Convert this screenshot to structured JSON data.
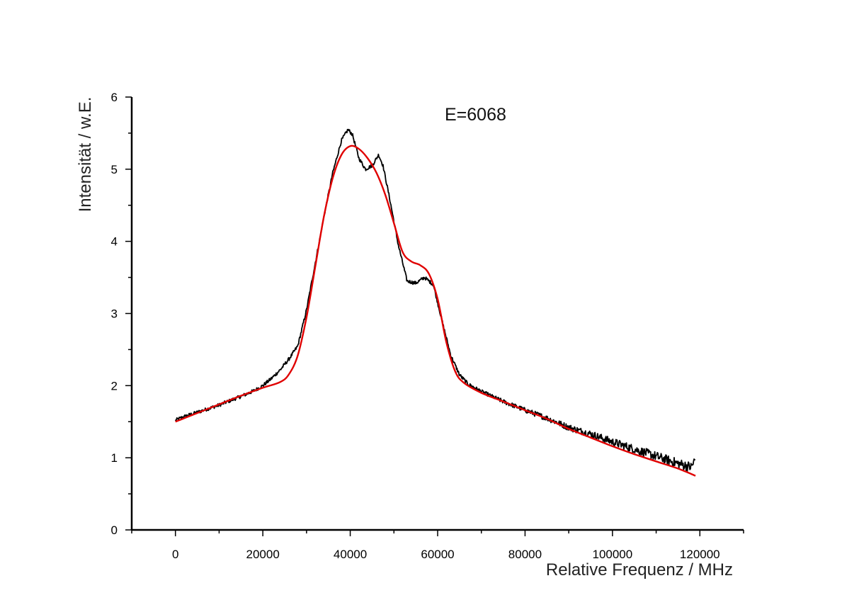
{
  "chart_data": {
    "type": "line",
    "title": "",
    "xlabel": "Relative Frequenz / MHz",
    "ylabel": "Intensität / w.E.",
    "annotation": "E=6068",
    "xlim": [
      -10000,
      130000
    ],
    "ylim": [
      0,
      6
    ],
    "x_ticks": [
      0,
      20000,
      40000,
      60000,
      80000,
      100000,
      120000
    ],
    "y_ticks": [
      0,
      1,
      2,
      3,
      4,
      5,
      6
    ],
    "grid": false,
    "legend": "none",
    "series": [
      {
        "color": "#000000",
        "style": "measured-noisy",
        "x": [
          0,
          2000,
          5000,
          8000,
          10000,
          12000,
          15000,
          18000,
          20000,
          22000,
          24000,
          26000,
          28000,
          30000,
          32000,
          34000,
          36000,
          38000,
          39500,
          40500,
          42000,
          43500,
          45000,
          46500,
          47500,
          49000,
          51000,
          53000,
          55000,
          57000,
          59000,
          61000,
          63000,
          65000,
          67000,
          70000,
          75000,
          80000,
          85000,
          90000,
          95000,
          100000,
          105000,
          110000,
          115000,
          118000,
          119000
        ],
        "values": [
          1.52,
          1.57,
          1.63,
          1.69,
          1.73,
          1.78,
          1.85,
          1.93,
          2.0,
          2.1,
          2.22,
          2.37,
          2.55,
          3.05,
          3.7,
          4.35,
          4.95,
          5.4,
          5.55,
          5.48,
          5.15,
          5.0,
          5.05,
          5.2,
          5.05,
          4.6,
          3.95,
          3.45,
          3.42,
          3.5,
          3.4,
          2.9,
          2.42,
          2.15,
          2.02,
          1.92,
          1.78,
          1.66,
          1.55,
          1.42,
          1.33,
          1.22,
          1.12,
          1.02,
          0.92,
          0.87,
          0.98
        ]
      },
      {
        "color": "#e00000",
        "style": "fit-smooth",
        "x": [
          0,
          5000,
          10000,
          15000,
          20000,
          24000,
          26000,
          28000,
          30000,
          32000,
          34000,
          36000,
          38000,
          40000,
          42000,
          44000,
          46000,
          48000,
          50000,
          52000,
          54000,
          56000,
          58000,
          60000,
          62000,
          64000,
          66000,
          70000,
          75000,
          80000,
          85000,
          90000,
          95000,
          100000,
          105000,
          110000,
          115000,
          119000
        ],
        "values": [
          1.5,
          1.62,
          1.74,
          1.86,
          1.97,
          2.05,
          2.16,
          2.42,
          2.95,
          3.65,
          4.35,
          4.88,
          5.2,
          5.32,
          5.28,
          5.15,
          4.95,
          4.65,
          4.25,
          3.85,
          3.72,
          3.67,
          3.55,
          3.2,
          2.6,
          2.2,
          2.04,
          1.9,
          1.78,
          1.66,
          1.54,
          1.4,
          1.28,
          1.16,
          1.05,
          0.95,
          0.85,
          0.75
        ]
      }
    ]
  }
}
